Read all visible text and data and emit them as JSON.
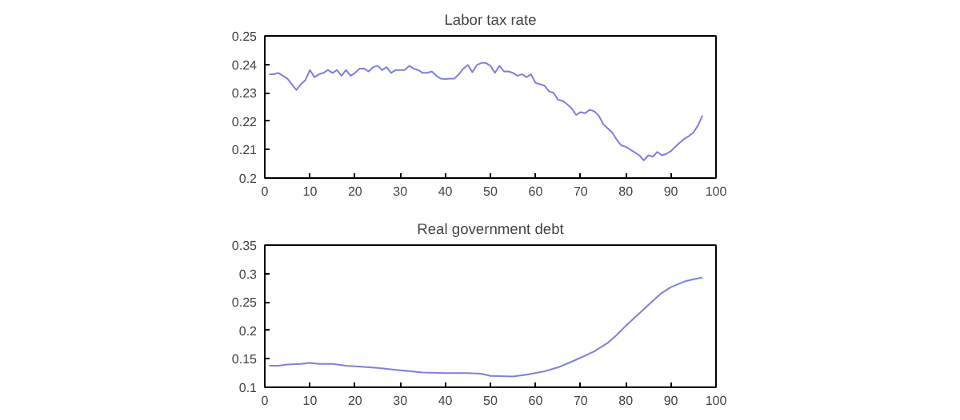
{
  "chart_data": [
    {
      "type": "line",
      "title": "Labor tax rate",
      "x": [
        1,
        2,
        3,
        4,
        5,
        6,
        7,
        8,
        9,
        10,
        11,
        12,
        13,
        14,
        15,
        16,
        17,
        18,
        19,
        20,
        21,
        22,
        23,
        24,
        25,
        26,
        27,
        28,
        29,
        30,
        31,
        32,
        33,
        34,
        35,
        36,
        37,
        38,
        39,
        40,
        41,
        42,
        43,
        44,
        45,
        46,
        47,
        48,
        49,
        50,
        51,
        52,
        53,
        54,
        55,
        56,
        57,
        58,
        59,
        60,
        61,
        62,
        63,
        64,
        65,
        66,
        67,
        68,
        69,
        70,
        71,
        72,
        73,
        74,
        75,
        76,
        77,
        78,
        79,
        80,
        81,
        82,
        83,
        84,
        85,
        86,
        87,
        88,
        89,
        90,
        91,
        92,
        93,
        94,
        95,
        96,
        97
      ],
      "series": [
        {
          "color": "#7f7fdf",
          "values": [
            0.2365,
            0.2365,
            0.237,
            0.236,
            0.235,
            0.233,
            0.231,
            0.233,
            0.2345,
            0.238,
            0.2355,
            0.2365,
            0.237,
            0.238,
            0.237,
            0.238,
            0.236,
            0.238,
            0.236,
            0.237,
            0.2385,
            0.2385,
            0.2375,
            0.239,
            0.2395,
            0.238,
            0.239,
            0.237,
            0.238,
            0.238,
            0.238,
            0.2395,
            0.2385,
            0.238,
            0.237,
            0.237,
            0.2375,
            0.236,
            0.235,
            0.2348,
            0.235,
            0.235,
            0.2365,
            0.2385,
            0.2398,
            0.2372,
            0.2398,
            0.2405,
            0.2405,
            0.2395,
            0.237,
            0.2395,
            0.2375,
            0.2375,
            0.237,
            0.236,
            0.2365,
            0.2355,
            0.2365,
            0.2335,
            0.233,
            0.2325,
            0.2305,
            0.23,
            0.2275,
            0.2272,
            0.226,
            0.2245,
            0.2222,
            0.2232,
            0.2228,
            0.224,
            0.2235,
            0.222,
            0.219,
            0.2175,
            0.216,
            0.2135,
            0.2115,
            0.211,
            0.21,
            0.209,
            0.208,
            0.2062,
            0.208,
            0.2075,
            0.2092,
            0.208,
            0.2085,
            0.2095,
            0.211,
            0.2125,
            0.2138,
            0.2148,
            0.216,
            0.2185,
            0.222
          ]
        }
      ],
      "xlim": [
        0,
        100
      ],
      "xticks": [
        0,
        10,
        20,
        30,
        40,
        50,
        60,
        70,
        80,
        90,
        100
      ],
      "ylim": [
        0.2,
        0.25
      ],
      "yticks": [
        {
          "value": 0.2,
          "label": "0.2"
        },
        {
          "value": 0.21,
          "label": "0.21"
        },
        {
          "value": 0.22,
          "label": "0.22"
        },
        {
          "value": 0.23,
          "label": "0.23"
        },
        {
          "value": 0.24,
          "label": "0.24"
        },
        {
          "value": 0.25,
          "label": "0.25"
        }
      ],
      "grid": false
    },
    {
      "type": "line",
      "title": "Real government debt",
      "x": [
        1,
        3,
        5,
        8,
        10,
        12,
        15,
        18,
        20,
        25,
        30,
        35,
        40,
        45,
        48,
        50,
        55,
        58,
        62,
        65,
        68,
        70,
        73,
        76,
        78,
        80,
        83,
        86,
        88,
        90,
        93,
        95,
        97
      ],
      "series": [
        {
          "color": "#7f7fdf",
          "values": [
            0.138,
            0.138,
            0.14,
            0.141,
            0.143,
            0.141,
            0.141,
            0.138,
            0.137,
            0.134,
            0.13,
            0.126,
            0.125,
            0.125,
            0.124,
            0.12,
            0.119,
            0.122,
            0.128,
            0.135,
            0.145,
            0.152,
            0.163,
            0.178,
            0.192,
            0.208,
            0.23,
            0.252,
            0.266,
            0.276,
            0.286,
            0.29,
            0.293
          ]
        }
      ],
      "xlim": [
        0,
        100
      ],
      "xticks": [
        0,
        10,
        20,
        30,
        40,
        50,
        60,
        70,
        80,
        90,
        100
      ],
      "ylim": [
        0.1,
        0.35
      ],
      "yticks": [
        {
          "value": 0.1,
          "label": "0.1"
        },
        {
          "value": 0.15,
          "label": "0.15"
        },
        {
          "value": 0.2,
          "label": "0.2"
        },
        {
          "value": 0.25,
          "label": "0.25"
        },
        {
          "value": 0.3,
          "label": "0.3"
        },
        {
          "value": 0.35,
          "label": "0.35"
        }
      ],
      "grid": false
    }
  ]
}
